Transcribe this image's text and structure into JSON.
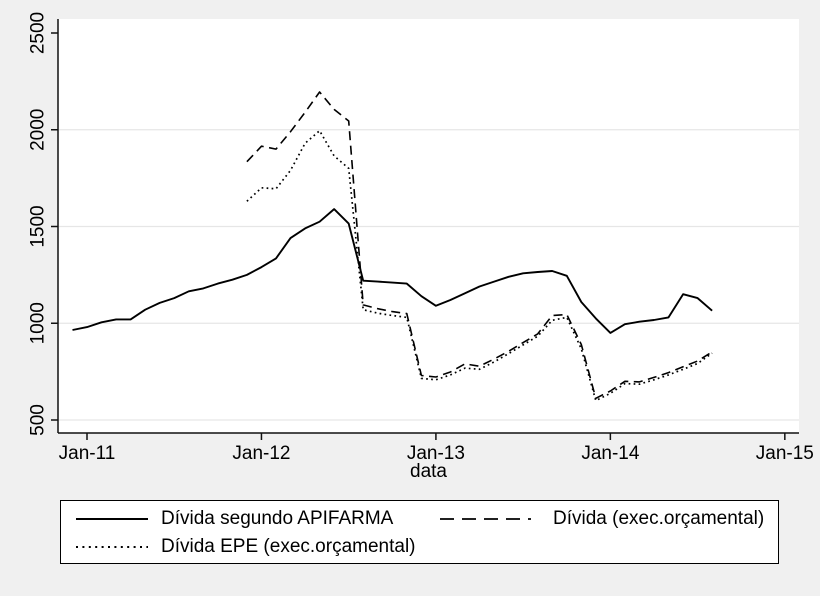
{
  "figure": {
    "background_color": "#f0f0f0",
    "plot_background_color": "#ffffff",
    "grid_color": "#e6e6e6",
    "axis_color": "#111111",
    "line_color": "#000000"
  },
  "chart_data": {
    "type": "line",
    "title": "",
    "xlabel": "data",
    "ylabel": "",
    "grid": true,
    "legend_position": "bottom",
    "ylim": [
      433,
      2572
    ],
    "x": [
      "2010-12",
      "2011-01",
      "2011-02",
      "2011-03",
      "2011-04",
      "2011-05",
      "2011-06",
      "2011-07",
      "2011-08",
      "2011-09",
      "2011-10",
      "2011-11",
      "2011-12",
      "2012-01",
      "2012-02",
      "2012-03",
      "2012-04",
      "2012-05",
      "2012-06",
      "2012-07",
      "2012-08",
      "2012-09",
      "2012-10",
      "2012-11",
      "2012-12",
      "2013-01",
      "2013-02",
      "2013-03",
      "2013-04",
      "2013-05",
      "2013-06",
      "2013-07",
      "2013-08",
      "2013-09",
      "2013-10",
      "2013-11",
      "2013-12",
      "2014-01",
      "2014-02",
      "2014-03",
      "2014-04",
      "2014-05",
      "2014-06",
      "2014-07",
      "2014-08"
    ],
    "x_ticks": [
      {
        "month": "2011-01",
        "label": "Jan-11"
      },
      {
        "month": "2012-01",
        "label": "Jan-12"
      },
      {
        "month": "2013-01",
        "label": "Jan-13"
      },
      {
        "month": "2014-01",
        "label": "Jan-14"
      },
      {
        "month": "2015-01",
        "label": "Jan-15"
      }
    ],
    "y_ticks": [
      {
        "value": 500,
        "label": "500",
        "grid": true
      },
      {
        "value": 1000,
        "label": "1000",
        "grid": true
      },
      {
        "value": 1500,
        "label": "1500",
        "grid": true
      },
      {
        "value": 2000,
        "label": "2000",
        "grid": true
      },
      {
        "value": 2500,
        "label": "2500",
        "grid": false
      }
    ],
    "series": [
      {
        "name": "Dívida segundo APIFARMA",
        "style": "solid",
        "values": [
          965,
          980,
          1005,
          1020,
          1020,
          1070,
          1105,
          1130,
          1165,
          1180,
          1205,
          1225,
          1250,
          1290,
          1335,
          1440,
          1490,
          1525,
          1590,
          1515,
          1220,
          1215,
          1210,
          1205,
          1140,
          1090,
          1120,
          1155,
          1190,
          1215,
          1240,
          1258,
          1265,
          1270,
          1245,
          1110,
          1025,
          950,
          995,
          1008,
          1017,
          1030,
          1150,
          1130,
          1065
        ]
      },
      {
        "name": "Dívida (exec.orçamental)",
        "style": "dashed",
        "values": [
          null,
          null,
          null,
          null,
          null,
          null,
          null,
          null,
          null,
          null,
          null,
          null,
          1835,
          1915,
          1900,
          1990,
          2090,
          2195,
          2105,
          2045,
          1095,
          1075,
          1060,
          1050,
          730,
          722,
          748,
          790,
          778,
          815,
          855,
          900,
          945,
          1040,
          1045,
          890,
          612,
          650,
          700,
          697,
          720,
          745,
          775,
          805,
          852
        ]
      },
      {
        "name": "Dívida EPE (exec.orçamental)",
        "style": "dotted",
        "values": [
          null,
          null,
          null,
          null,
          null,
          null,
          null,
          null,
          null,
          null,
          null,
          null,
          1630,
          1700,
          1695,
          1790,
          1930,
          1995,
          1865,
          1800,
          1070,
          1052,
          1040,
          1030,
          715,
          708,
          733,
          768,
          762,
          800,
          843,
          888,
          933,
          1015,
          1030,
          868,
          600,
          638,
          688,
          685,
          708,
          733,
          762,
          792,
          845
        ]
      }
    ]
  }
}
